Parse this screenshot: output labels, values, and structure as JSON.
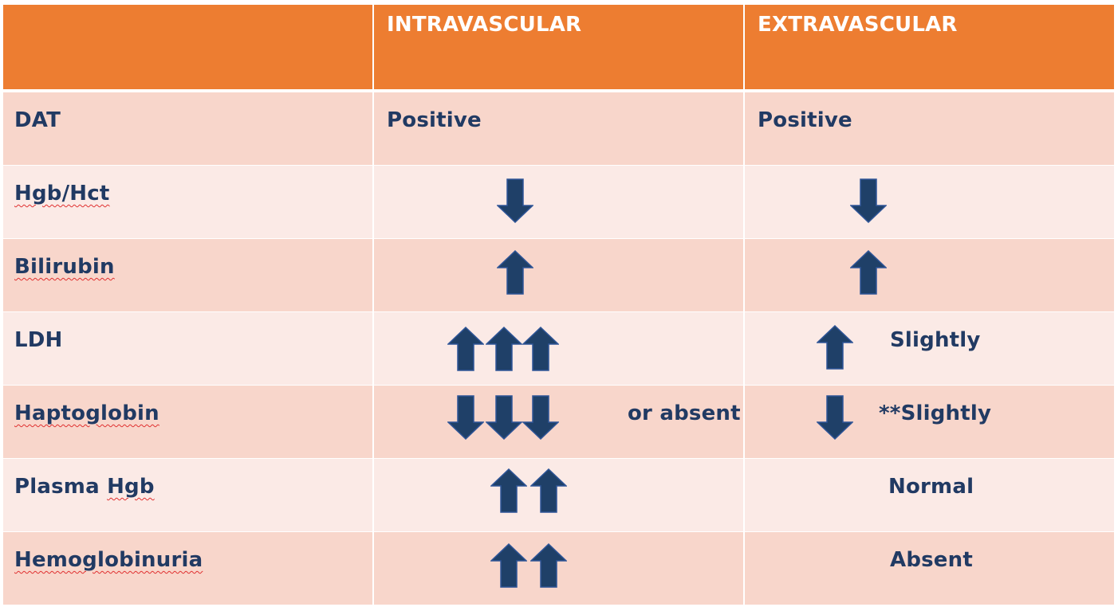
{
  "headers": [
    "",
    "INTRAVASCULAR",
    "EXTRAVASCULAR"
  ],
  "rows": [
    {
      "label": "DAT",
      "intravascular": {
        "text": "Positive",
        "arrows": []
      },
      "extravascular": {
        "text": "Positive",
        "arrows": []
      }
    },
    {
      "label": "Hgb/Hct",
      "intravascular": {
        "text": "",
        "arrows": [
          "down"
        ]
      },
      "extravascular": {
        "text": "",
        "arrows": [
          "down"
        ]
      }
    },
    {
      "label": "Bilirubin",
      "intravascular": {
        "text": "",
        "arrows": [
          "up"
        ]
      },
      "extravascular": {
        "text": "",
        "arrows": [
          "up"
        ]
      }
    },
    {
      "label": "LDH",
      "intravascular": {
        "text": "",
        "arrows": [
          "up",
          "up",
          "up"
        ]
      },
      "extravascular": {
        "text": "Slightly",
        "arrows": [
          "up"
        ]
      }
    },
    {
      "label": "Haptoglobin",
      "intravascular": {
        "text": "or absent",
        "arrows": [
          "down",
          "down",
          "down"
        ]
      },
      "extravascular": {
        "text": "**Slightly",
        "arrows": [
          "down"
        ]
      }
    },
    {
      "label": "Plasma Hgb",
      "intravascular": {
        "text": "",
        "arrows": [
          "up",
          "up"
        ]
      },
      "extravascular": {
        "text": "Normal",
        "arrows": []
      }
    },
    {
      "label": "Hemoglobinuria",
      "intravascular": {
        "text": "",
        "arrows": [
          "up",
          "up"
        ]
      },
      "extravascular": {
        "text": "Absent",
        "arrows": []
      }
    }
  ],
  "colors": {
    "header_bg": "#ed7d31",
    "row_dark": "#f8d6cb",
    "row_light": "#fbeae6",
    "text": "#213a63",
    "arrow_fill": "#1f4068",
    "arrow_stroke": "#2f5597"
  },
  "icons": {
    "up": "arrow-up-icon",
    "down": "arrow-down-icon"
  }
}
